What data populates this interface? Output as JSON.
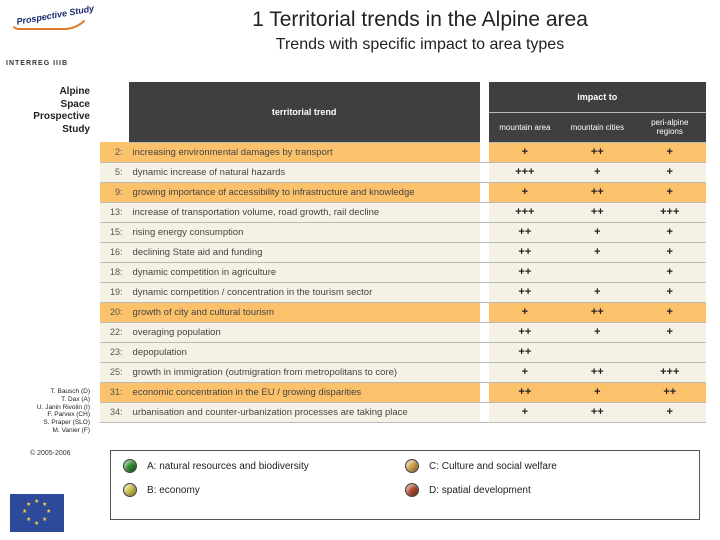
{
  "logo_text": "Prospective Study",
  "title": "1  Territorial trends in the Alpine area",
  "subtitle": "Trends with specific impact to area types",
  "interreg": "INTERREG IIIB",
  "sidebar_lines": [
    "Alpine",
    "Space",
    "Prospective",
    "Study"
  ],
  "authors": [
    "T. Bausch (D)",
    "T. Dax (A)",
    "U. Janin Rivolin (I)",
    "F. Parvex (CH)",
    "S. Praper (SLO)",
    "M. Vanier (F)"
  ],
  "copyright": "© 2005-2006",
  "table": {
    "head": {
      "trend": "territorial trend",
      "impact": "impact to",
      "cols": [
        "mountain area",
        "mountain cities",
        "peri-alpine regions"
      ]
    },
    "rows": [
      {
        "n": "2:",
        "t": "increasing environmental damages by transport",
        "hi": true,
        "i": [
          "+",
          "++",
          "+"
        ]
      },
      {
        "n": "5:",
        "t": "dynamic increase of natural hazards",
        "hi": false,
        "i": [
          "+++",
          "+",
          "+"
        ]
      },
      {
        "n": "9:",
        "t": "growing importance of accessibility  to infrastructure and knowledge",
        "hi": true,
        "i": [
          "+",
          "++",
          "+"
        ]
      },
      {
        "n": "13:",
        "t": "increase of transportation volume, road growth, rail decline",
        "hi": false,
        "i": [
          "+++",
          "++",
          "+++"
        ]
      },
      {
        "n": "15:",
        "t": "rising energy consumption",
        "hi": false,
        "i": [
          "++",
          "+",
          "+"
        ]
      },
      {
        "n": "16:",
        "t": "declining State aid and funding",
        "hi": false,
        "i": [
          "++",
          "+",
          "+"
        ]
      },
      {
        "n": "18:",
        "t": "dynamic competition in agriculture",
        "hi": false,
        "i": [
          "++",
          "",
          "+"
        ]
      },
      {
        "n": "19:",
        "t": "dynamic competition / concentration in the tourism sector",
        "hi": false,
        "i": [
          "++",
          "+",
          "+"
        ]
      },
      {
        "n": "20:",
        "t": "growth of city and cultural tourism",
        "hi": true,
        "i": [
          "+",
          "++",
          "+"
        ]
      },
      {
        "n": "22:",
        "t": "overaging  population",
        "hi": false,
        "i": [
          "++",
          "+",
          "+"
        ]
      },
      {
        "n": "23:",
        "t": "depopulation",
        "hi": false,
        "i": [
          "++",
          "",
          ""
        ]
      },
      {
        "n": "25:",
        "t": "growth in immigration (outmigration from metropolitans to core)",
        "hi": false,
        "i": [
          "+",
          "++",
          "+++"
        ]
      },
      {
        "n": "31:",
        "t": "economic concentration in the EU  /  growing disparities",
        "hi": true,
        "i": [
          "++",
          "+",
          "++"
        ]
      },
      {
        "n": "34:",
        "t": "urbanisation and counter-urbanization processes are taking place",
        "hi": false,
        "i": [
          "+",
          "++",
          "+"
        ]
      }
    ],
    "row_colors": {
      "normal": "#f5f1e4",
      "highlight": "#fbc26b"
    }
  },
  "legend": [
    {
      "letter": "A",
      "label": "A: natural resources  and biodiversity",
      "color": "#2f8f2f"
    },
    {
      "letter": "C",
      "label": "C: Culture and social welfare",
      "color": "#d9a54a"
    },
    {
      "letter": "B",
      "label": "B: economy",
      "color": "#d6c84e"
    },
    {
      "letter": "D",
      "label": "D: spatial development",
      "color": "#b54b2e"
    }
  ]
}
